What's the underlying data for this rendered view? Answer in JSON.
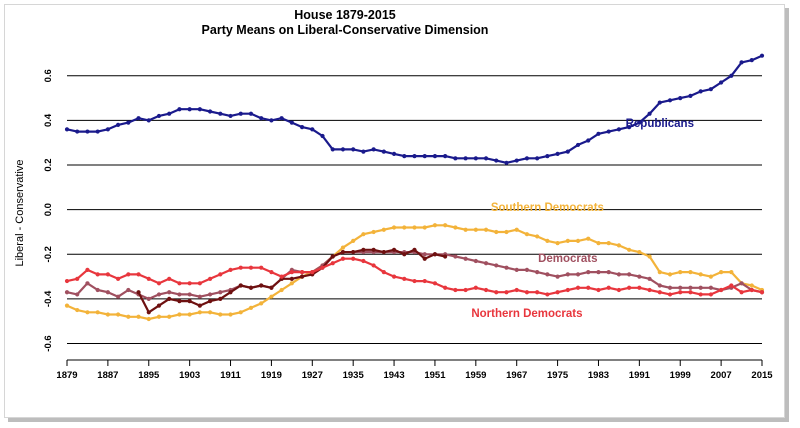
{
  "chart_data": {
    "type": "line",
    "title": "House 1879-2015",
    "subtitle": "Party Means on Liberal-Conservative Dimension",
    "xlabel": "",
    "ylabel": "Liberal - Conservative",
    "xlim": [
      1879,
      2015
    ],
    "ylim": [
      -0.62,
      0.72
    ],
    "x_ticks": [
      1879,
      1887,
      1895,
      1903,
      1911,
      1919,
      1927,
      1935,
      1943,
      1951,
      1959,
      1967,
      1975,
      1983,
      1991,
      1999,
      2007,
      2015
    ],
    "x_tick_labels": [
      "1879",
      "1887",
      "1895",
      "1903",
      "1911",
      "1919",
      "1927",
      "1935",
      "1943",
      "1951",
      "1959",
      "1967",
      "1975",
      "1983",
      "1991",
      "1999",
      "2007",
      "2015"
    ],
    "y_ticks": [
      -0.6,
      -0.4,
      -0.2,
      0.0,
      0.2,
      0.4,
      0.6
    ],
    "y_tick_labels": [
      "-0.6",
      "-0.4",
      "-0.2",
      "0.0",
      "0.2",
      "0.4",
      "0.6"
    ],
    "grid": "horizontal",
    "legend": "inline",
    "series": [
      {
        "name": "Republicans",
        "color": "#1a1a8c",
        "label_at": [
          1995,
          0.37
        ],
        "x": [
          1879,
          1881,
          1883,
          1885,
          1887,
          1889,
          1891,
          1893,
          1895,
          1897,
          1899,
          1901,
          1903,
          1905,
          1907,
          1909,
          1911,
          1913,
          1915,
          1917,
          1919,
          1921,
          1923,
          1925,
          1927,
          1929,
          1931,
          1933,
          1935,
          1937,
          1939,
          1941,
          1943,
          1945,
          1947,
          1949,
          1951,
          1953,
          1955,
          1957,
          1959,
          1961,
          1963,
          1965,
          1967,
          1969,
          1971,
          1973,
          1975,
          1977,
          1979,
          1981,
          1983,
          1985,
          1987,
          1989,
          1991,
          1993,
          1995,
          1997,
          1999,
          2001,
          2003,
          2005,
          2007,
          2009,
          2011,
          2013,
          2015
        ],
        "values": [
          0.36,
          0.35,
          0.35,
          0.35,
          0.36,
          0.38,
          0.39,
          0.41,
          0.4,
          0.42,
          0.43,
          0.45,
          0.45,
          0.45,
          0.44,
          0.43,
          0.42,
          0.43,
          0.43,
          0.41,
          0.4,
          0.41,
          0.39,
          0.37,
          0.36,
          0.33,
          0.27,
          0.27,
          0.27,
          0.26,
          0.27,
          0.26,
          0.25,
          0.24,
          0.24,
          0.24,
          0.24,
          0.24,
          0.23,
          0.23,
          0.23,
          0.23,
          0.22,
          0.21,
          0.22,
          0.23,
          0.23,
          0.24,
          0.25,
          0.26,
          0.29,
          0.31,
          0.34,
          0.35,
          0.36,
          0.37,
          0.39,
          0.43,
          0.48,
          0.49,
          0.5,
          0.51,
          0.53,
          0.54,
          0.57,
          0.6,
          0.66,
          0.67,
          0.69
        ]
      },
      {
        "name": "Southern Democrats",
        "color": "#f3b33a",
        "label_at": [
          1973,
          -0.005
        ],
        "x": [
          1879,
          1881,
          1883,
          1885,
          1887,
          1889,
          1891,
          1893,
          1895,
          1897,
          1899,
          1901,
          1903,
          1905,
          1907,
          1909,
          1911,
          1913,
          1915,
          1917,
          1919,
          1921,
          1923,
          1925,
          1927,
          1929,
          1931,
          1933,
          1935,
          1937,
          1939,
          1941,
          1943,
          1945,
          1947,
          1949,
          1951,
          1953,
          1955,
          1957,
          1959,
          1961,
          1963,
          1965,
          1967,
          1969,
          1971,
          1973,
          1975,
          1977,
          1979,
          1981,
          1983,
          1985,
          1987,
          1989,
          1991,
          1993,
          1995,
          1997,
          1999,
          2001,
          2003,
          2005,
          2007,
          2009,
          2011,
          2013,
          2015
        ],
        "values": [
          -0.43,
          -0.45,
          -0.46,
          -0.46,
          -0.47,
          -0.47,
          -0.48,
          -0.48,
          -0.49,
          -0.48,
          -0.48,
          -0.47,
          -0.47,
          -0.46,
          -0.46,
          -0.47,
          -0.47,
          -0.46,
          -0.44,
          -0.42,
          -0.39,
          -0.36,
          -0.33,
          -0.3,
          -0.28,
          -0.25,
          -0.21,
          -0.17,
          -0.14,
          -0.11,
          -0.1,
          -0.09,
          -0.08,
          -0.08,
          -0.08,
          -0.08,
          -0.07,
          -0.07,
          -0.08,
          -0.09,
          -0.09,
          -0.09,
          -0.1,
          -0.1,
          -0.09,
          -0.11,
          -0.12,
          -0.14,
          -0.15,
          -0.14,
          -0.14,
          -0.13,
          -0.15,
          -0.15,
          -0.16,
          -0.18,
          -0.19,
          -0.21,
          -0.28,
          -0.29,
          -0.28,
          -0.28,
          -0.29,
          -0.3,
          -0.28,
          -0.28,
          -0.33,
          -0.34,
          -0.36
        ]
      },
      {
        "name": "Democrats",
        "color": "#a05060",
        "label_at": [
          1977,
          -0.235
        ],
        "x": [
          1879,
          1881,
          1883,
          1885,
          1887,
          1889,
          1891,
          1893,
          1895,
          1897,
          1899,
          1901,
          1903,
          1905,
          1907,
          1909,
          1911,
          1913,
          1915,
          1917,
          1919,
          1921,
          1923,
          1925,
          1927,
          1929,
          1931,
          1933,
          1935,
          1937,
          1939,
          1941,
          1943,
          1945,
          1947,
          1949,
          1951,
          1953,
          1955,
          1957,
          1959,
          1961,
          1963,
          1965,
          1967,
          1969,
          1971,
          1973,
          1975,
          1977,
          1979,
          1981,
          1983,
          1985,
          1987,
          1989,
          1991,
          1993,
          1995,
          1997,
          1999,
          2001,
          2003,
          2005,
          2007,
          2009,
          2011,
          2013,
          2015
        ],
        "values": [
          -0.37,
          -0.38,
          -0.33,
          -0.36,
          -0.37,
          -0.39,
          -0.36,
          -0.38,
          -0.4,
          -0.38,
          -0.37,
          -0.38,
          -0.38,
          -0.39,
          -0.38,
          -0.37,
          -0.36,
          -0.34,
          -0.35,
          -0.34,
          -0.35,
          -0.31,
          -0.27,
          -0.28,
          -0.28,
          -0.25,
          -0.21,
          -0.19,
          -0.19,
          -0.19,
          -0.19,
          -0.19,
          -0.19,
          -0.19,
          -0.19,
          -0.2,
          -0.2,
          -0.2,
          -0.21,
          -0.22,
          -0.23,
          -0.24,
          -0.25,
          -0.26,
          -0.27,
          -0.27,
          -0.28,
          -0.29,
          -0.3,
          -0.29,
          -0.29,
          -0.28,
          -0.28,
          -0.28,
          -0.29,
          -0.29,
          -0.3,
          -0.31,
          -0.34,
          -0.35,
          -0.35,
          -0.35,
          -0.35,
          -0.35,
          -0.36,
          -0.35,
          -0.33,
          -0.36,
          -0.37
        ]
      },
      {
        "name": "",
        "color": "#6e1010",
        "label_at": null,
        "x": [
          1893,
          1895,
          1897,
          1899,
          1901,
          1903,
          1905,
          1907,
          1909,
          1911,
          1913,
          1915,
          1917,
          1919,
          1921,
          1923,
          1925,
          1927,
          1929,
          1931,
          1933,
          1935,
          1937,
          1939,
          1941,
          1943,
          1945,
          1947,
          1949,
          1951,
          1953
        ],
        "values": [
          -0.37,
          -0.46,
          -0.43,
          -0.4,
          -0.41,
          -0.41,
          -0.43,
          -0.41,
          -0.4,
          -0.37,
          -0.34,
          -0.35,
          -0.34,
          -0.35,
          -0.31,
          -0.31,
          -0.3,
          -0.29,
          -0.26,
          -0.21,
          -0.19,
          -0.19,
          -0.18,
          -0.18,
          -0.19,
          -0.18,
          -0.2,
          -0.18,
          -0.22,
          -0.2,
          -0.21
        ]
      },
      {
        "name": "Northern Democrats",
        "color": "#e8363d",
        "label_at": [
          1969,
          -0.48
        ],
        "x": [
          1879,
          1881,
          1883,
          1885,
          1887,
          1889,
          1891,
          1893,
          1895,
          1897,
          1899,
          1901,
          1903,
          1905,
          1907,
          1909,
          1911,
          1913,
          1915,
          1917,
          1919,
          1921,
          1923,
          1925,
          1927,
          1929,
          1931,
          1933,
          1935,
          1937,
          1939,
          1941,
          1943,
          1945,
          1947,
          1949,
          1951,
          1953,
          1955,
          1957,
          1959,
          1961,
          1963,
          1965,
          1967,
          1969,
          1971,
          1973,
          1975,
          1977,
          1979,
          1981,
          1983,
          1985,
          1987,
          1989,
          1991,
          1993,
          1995,
          1997,
          1999,
          2001,
          2003,
          2005,
          2007,
          2009,
          2011,
          2013,
          2015
        ],
        "values": [
          -0.32,
          -0.31,
          -0.27,
          -0.29,
          -0.29,
          -0.31,
          -0.29,
          -0.29,
          -0.31,
          -0.33,
          -0.31,
          -0.33,
          -0.33,
          -0.33,
          -0.31,
          -0.29,
          -0.27,
          -0.26,
          -0.26,
          -0.26,
          -0.28,
          -0.3,
          -0.28,
          -0.28,
          -0.28,
          -0.26,
          -0.24,
          -0.22,
          -0.22,
          -0.23,
          -0.25,
          -0.28,
          -0.3,
          -0.31,
          -0.32,
          -0.32,
          -0.33,
          -0.35,
          -0.36,
          -0.36,
          -0.35,
          -0.36,
          -0.37,
          -0.37,
          -0.36,
          -0.37,
          -0.37,
          -0.38,
          -0.37,
          -0.36,
          -0.35,
          -0.35,
          -0.36,
          -0.35,
          -0.36,
          -0.35,
          -0.35,
          -0.36,
          -0.37,
          -0.38,
          -0.37,
          -0.37,
          -0.38,
          -0.38,
          -0.36,
          -0.34,
          -0.37,
          -0.36,
          -0.37
        ]
      }
    ]
  }
}
